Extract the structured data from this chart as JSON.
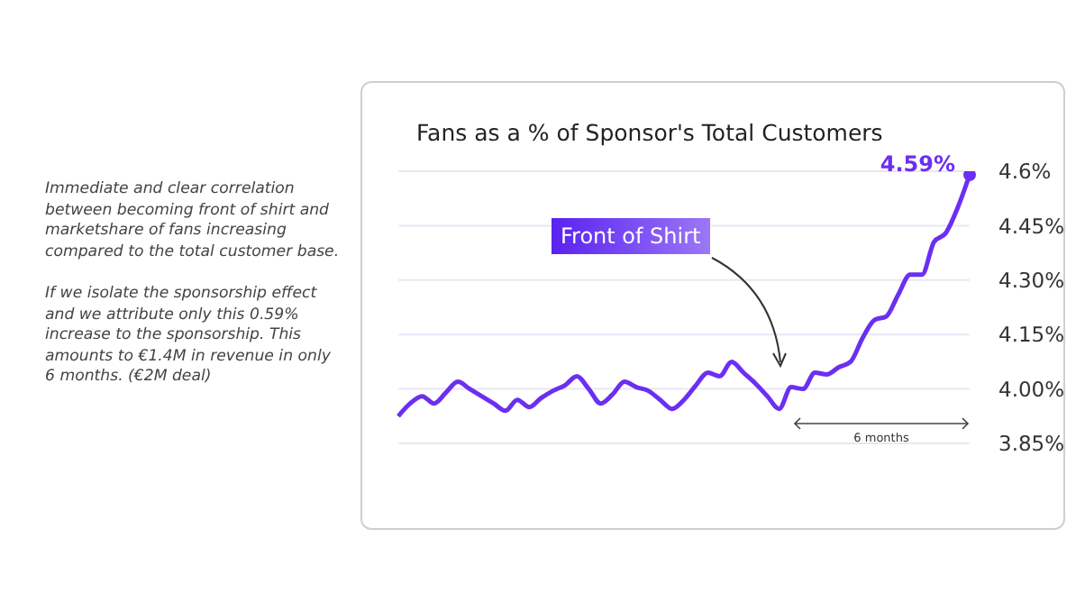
{
  "chart_data": {
    "type": "line",
    "title": "Fans as a % of Sponsor's Total Customers",
    "categories": [
      null,
      null,
      null,
      null,
      null,
      null,
      null,
      null,
      null,
      null,
      null,
      null,
      null,
      null,
      null,
      null,
      null,
      null,
      null,
      null,
      null,
      null,
      null,
      null,
      null,
      null,
      null,
      null,
      null,
      null,
      null,
      null,
      null,
      null,
      null,
      null,
      null,
      null,
      null,
      null,
      null,
      null,
      null,
      null,
      null,
      null,
      null,
      null,
      null
    ],
    "series": [
      {
        "color": "#6b2ff2",
        "values": [
          3.925,
          3.96,
          3.98,
          3.96,
          3.99,
          4.02,
          4.0,
          3.98,
          3.96,
          3.94,
          3.97,
          3.95,
          3.975,
          3.995,
          4.01,
          4.035,
          4.0,
          3.96,
          3.985,
          4.02,
          4.005,
          3.995,
          3.97,
          3.945,
          3.97,
          4.01,
          4.045,
          4.035,
          4.075,
          4.045,
          4.015,
          3.98,
          3.945,
          4.005,
          4.0,
          4.045,
          4.04,
          4.06,
          4.075,
          4.14,
          4.19,
          4.2,
          4.26,
          4.315,
          4.315,
          4.405,
          4.43,
          4.5,
          4.59
        ],
        "value_labels": [
          null,
          null,
          null,
          null,
          null,
          null,
          null,
          null,
          null,
          null,
          null,
          null,
          null,
          null,
          null,
          null,
          null,
          null,
          null,
          null,
          null,
          null,
          null,
          null,
          null,
          null,
          null,
          null,
          null,
          null,
          null,
          null,
          null,
          null,
          null,
          null,
          null,
          null,
          null,
          null,
          null,
          null,
          null,
          null,
          null,
          null,
          null,
          null,
          "4.59%"
        ]
      }
    ],
    "ylim": [
      3.85,
      4.6
    ],
    "yticks": [
      {
        "value": 3.85,
        "label": "3.85%"
      },
      {
        "value": 4.0,
        "label": "4.00%"
      },
      {
        "value": 4.15,
        "label": "4.15%"
      },
      {
        "value": 4.3,
        "label": "4.30%"
      },
      {
        "value": 4.45,
        "label": "4.45%"
      },
      {
        "value": 4.6,
        "label": "4.6%"
      }
    ],
    "grid": "y",
    "marker": "none",
    "line_style": "solid",
    "tick_labels": "y",
    "annotations": [
      "Front of Shirt",
      "6 months",
      "Immediate and clear correlation between becoming front of shirt and marketshare of fans increasing compared to the total customer base.",
      "If we isolate the sponsorship effect and we attribute only this 0.59% increase to the sponsorship. This amounts to €1.4M  in revenue in only 6 months. (€2M  deal)"
    ]
  }
}
